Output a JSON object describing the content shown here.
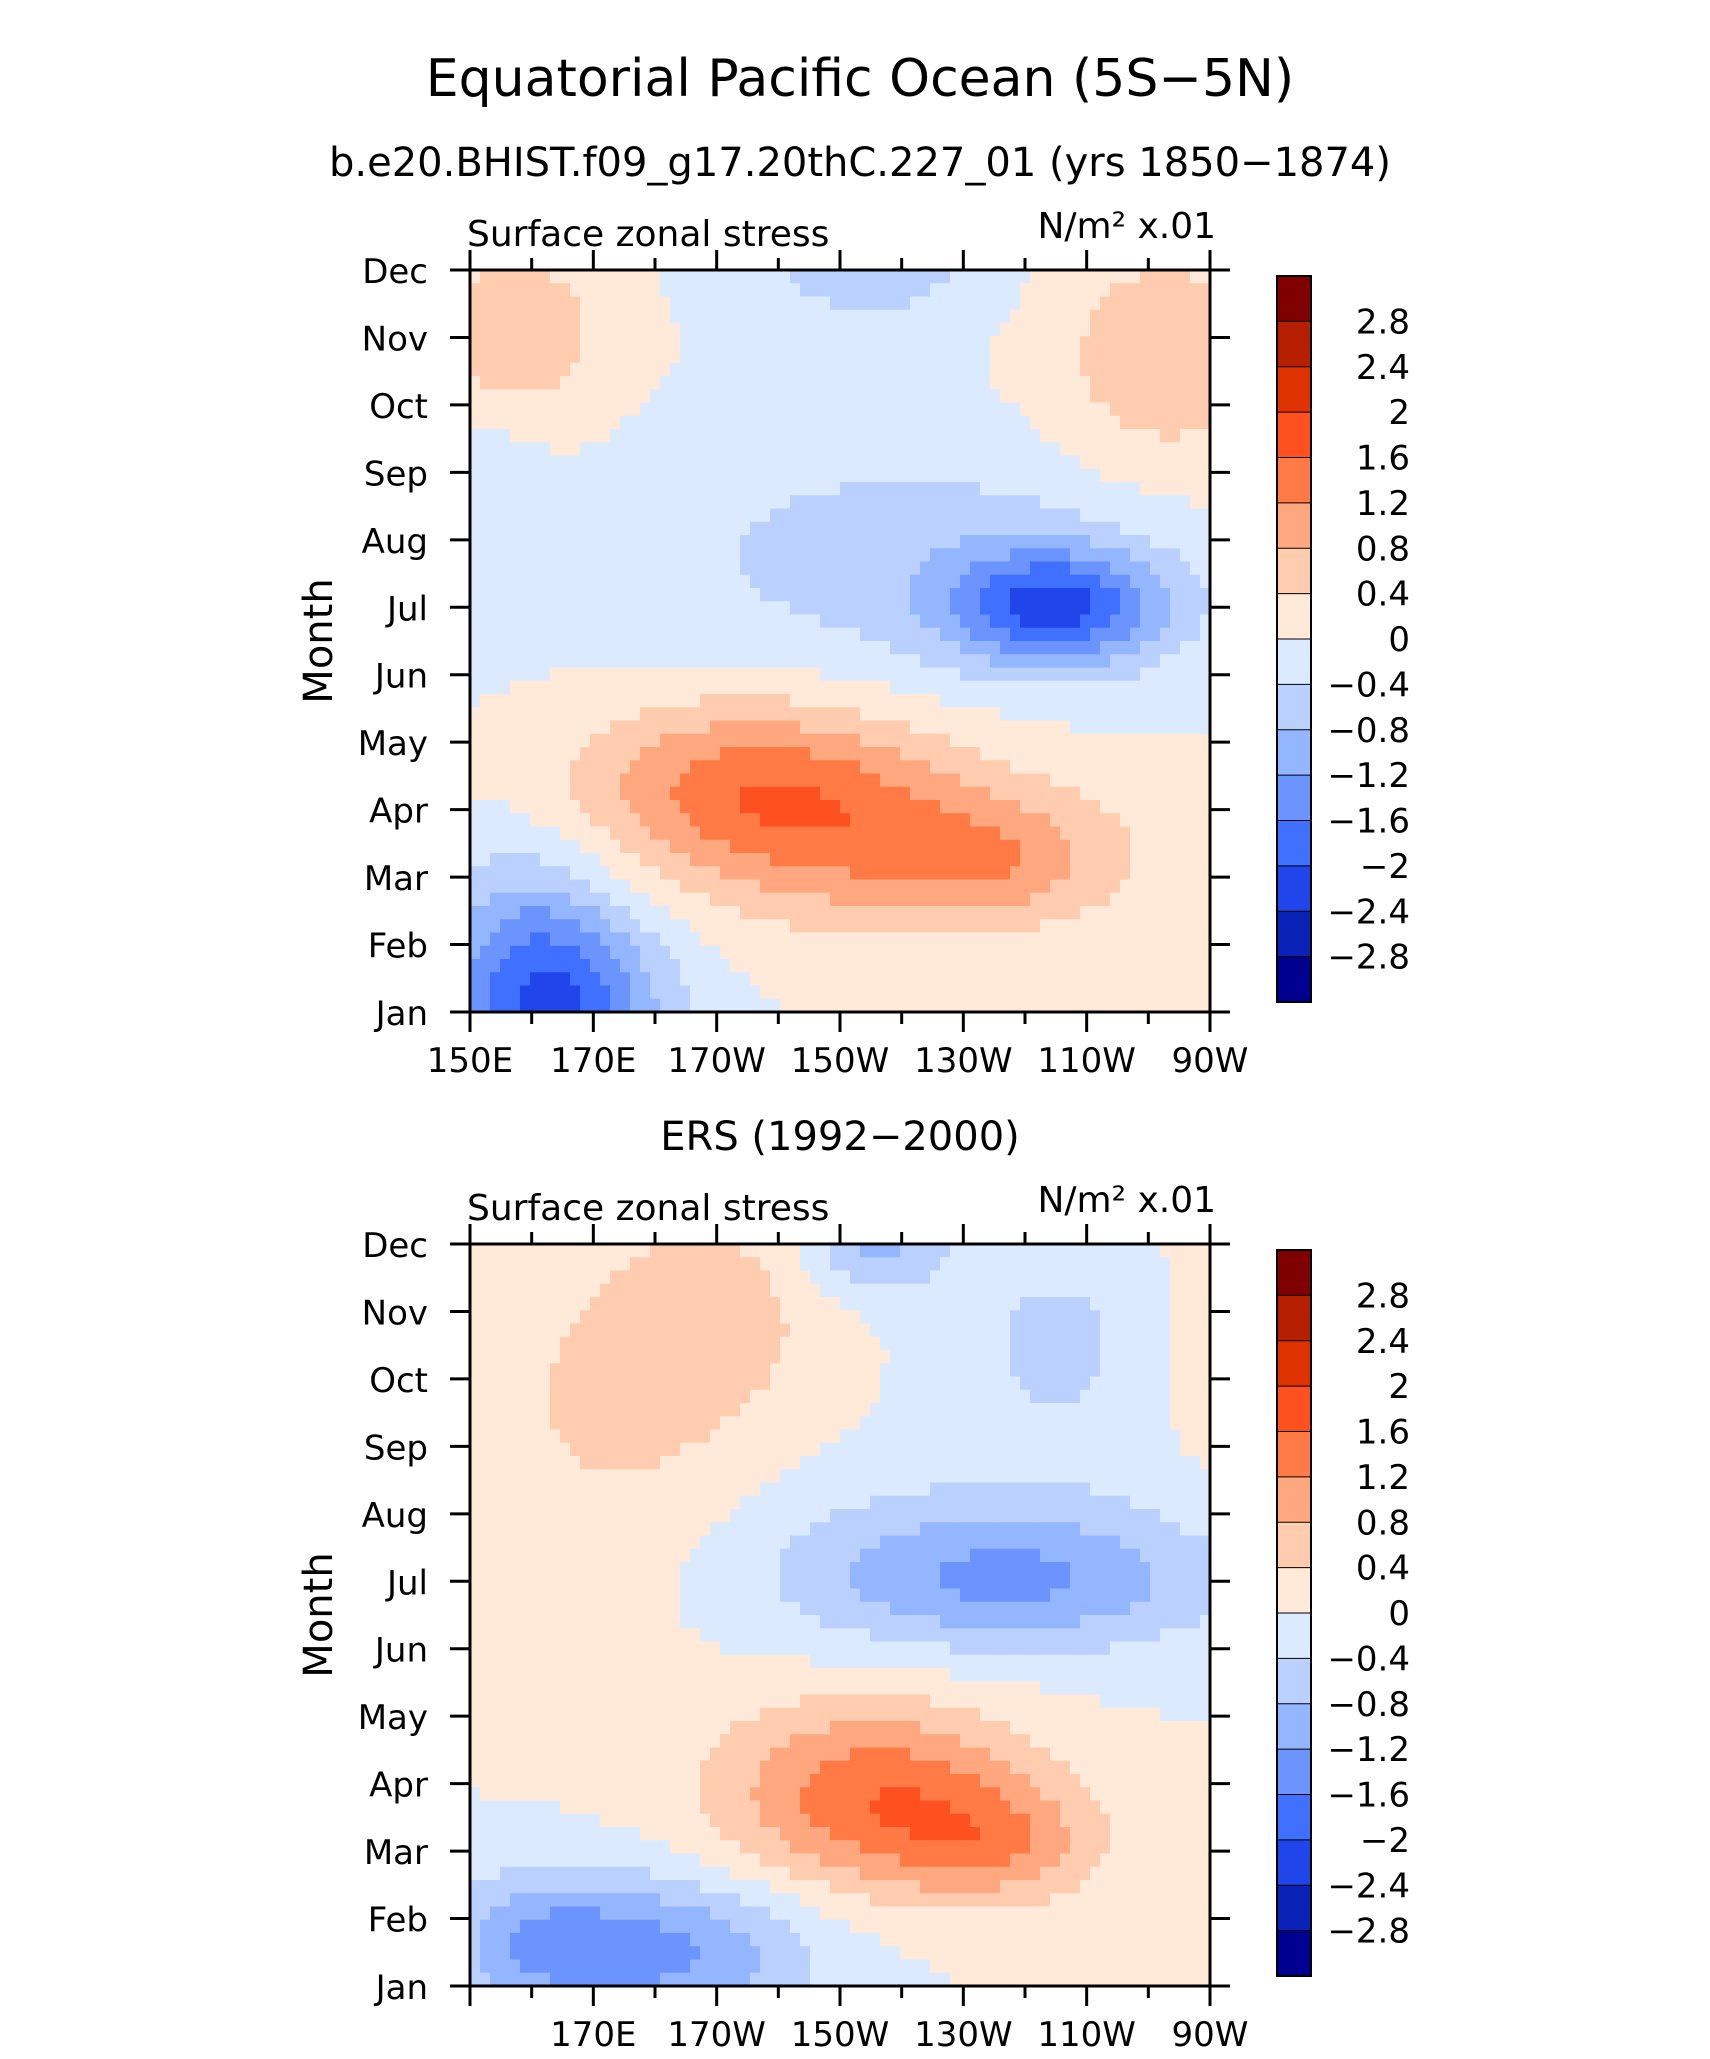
{
  "title": "Equatorial Pacific Ocean (5S−5N)",
  "subtitle": "b.e20.BHIST.f09_g17.20thC.227_01 (yrs 1850−1874)",
  "colorbar": {
    "levels": [
      "2.8",
      "2.4",
      "2",
      "1.6",
      "1.2",
      "0.8",
      "0.4",
      "0",
      "−0.4",
      "−0.8",
      "−1.2",
      "−1.6",
      "−2",
      "−2.4",
      "−2.8"
    ],
    "colors": [
      "#800000",
      "#b51f00",
      "#de3300",
      "#ff5020",
      "#ff7a45",
      "#ffa880",
      "#ffccb0",
      "#ffe9d9",
      "#dbeaff",
      "#bad1ff",
      "#94b5ff",
      "#6b94ff",
      "#4070ff",
      "#1f45eb",
      "#0a22b8",
      "#000090"
    ]
  },
  "chart_data": [
    {
      "type": "heatmap",
      "title": "",
      "left_label": "Surface zonal stress",
      "right_label": "N/m² x.01",
      "ylabel": "Month",
      "xlabel": "",
      "y_categories": [
        "Jan",
        "Feb",
        "Mar",
        "Apr",
        "May",
        "Jun",
        "Jul",
        "Aug",
        "Sep",
        "Oct",
        "Nov",
        "Dec"
      ],
      "x_ticks": [
        "150E",
        "170E",
        "170W",
        "150W",
        "130W",
        "110W",
        "90W"
      ],
      "x_range": [
        150,
        270
      ],
      "contour_levels": [
        -2.8,
        -2.4,
        -2.0,
        -1.6,
        -1.2,
        -0.8,
        -0.4,
        0,
        0.4,
        0.8,
        1.2,
        1.6,
        2.0,
        2.4,
        2.8
      ],
      "field": [
        {
          "lon": 165,
          "month": 1,
          "value": -1.7,
          "sx": 12,
          "sy": 1.1
        },
        {
          "lon": 158,
          "month": 2,
          "value": -0.7,
          "sx": 10,
          "sy": 1.2
        },
        {
          "lon": 196,
          "month": 4.4,
          "value": 1.3,
          "sx": 20,
          "sy": 0.9
        },
        {
          "lon": 220,
          "month": 3.4,
          "value": 0.9,
          "sx": 25,
          "sy": 0.9
        },
        {
          "lon": 235,
          "month": 3.2,
          "value": 0.5,
          "sx": 13,
          "sy": 0.6
        },
        {
          "lon": 245,
          "month": 7,
          "value": -1.9,
          "sx": 12,
          "sy": 0.6
        },
        {
          "lon": 222,
          "month": 7.7,
          "value": -0.6,
          "sx": 32,
          "sy": 1.3
        },
        {
          "lon": 157,
          "month": 11,
          "value": 0.8,
          "sx": 10,
          "sy": 0.9
        },
        {
          "lon": 262,
          "month": 10.6,
          "value": 0.7,
          "sx": 13,
          "sy": 1.3
        },
        {
          "lon": 215,
          "month": 12,
          "value": -0.6,
          "sx": 14,
          "sy": 0.6
        },
        {
          "lon": 152,
          "month": 8.5,
          "value": -0.3,
          "sx": 7,
          "sy": 1.3
        }
      ]
    },
    {
      "type": "heatmap",
      "title": "ERS (1992−2000)",
      "left_label": "Surface zonal stress",
      "right_label": "N/m² x.01",
      "ylabel": "Month",
      "xlabel": "",
      "y_categories": [
        "Jan",
        "Feb",
        "Mar",
        "Apr",
        "May",
        "Jun",
        "Jul",
        "Aug",
        "Sep",
        "Oct",
        "Nov",
        "Dec"
      ],
      "x_ticks": [
        "170E",
        "170W",
        "150W",
        "130W",
        "110W",
        "90W"
      ],
      "x_range": [
        150,
        270
      ],
      "contour_levels": [
        -2.8,
        -2.4,
        -2.0,
        -1.6,
        -1.2,
        -0.8,
        -0.4,
        0,
        0.4,
        0.8,
        1.2,
        1.6,
        2.0,
        2.4,
        2.8
      ],
      "field": [
        {
          "lon": 180,
          "month": 1.5,
          "value": -1.3,
          "sx": 18,
          "sy": 0.8
        },
        {
          "lon": 160,
          "month": 1.7,
          "value": -0.7,
          "sx": 10,
          "sy": 0.7
        },
        {
          "lon": 216,
          "month": 3.8,
          "value": 1.5,
          "sx": 18,
          "sy": 1.0
        },
        {
          "lon": 236,
          "month": 3.1,
          "value": 0.8,
          "sx": 12,
          "sy": 0.6
        },
        {
          "lon": 240,
          "month": 7,
          "value": -0.9,
          "sx": 22,
          "sy": 0.7
        },
        {
          "lon": 225,
          "month": 7.3,
          "value": -0.5,
          "sx": 30,
          "sy": 1.0
        },
        {
          "lon": 175,
          "month": 9.6,
          "value": 0.5,
          "sx": 18,
          "sy": 2.2
        },
        {
          "lon": 192,
          "month": 11,
          "value": 0.4,
          "sx": 10,
          "sy": 1.0
        },
        {
          "lon": 216,
          "month": 12,
          "value": -0.9,
          "sx": 8,
          "sy": 0.5
        },
        {
          "lon": 245,
          "month": 10.5,
          "value": -0.5,
          "sx": 12,
          "sy": 1.2
        },
        {
          "lon": 268,
          "month": 10.5,
          "value": 0.2,
          "sx": 6,
          "sy": 1.5
        }
      ]
    }
  ]
}
